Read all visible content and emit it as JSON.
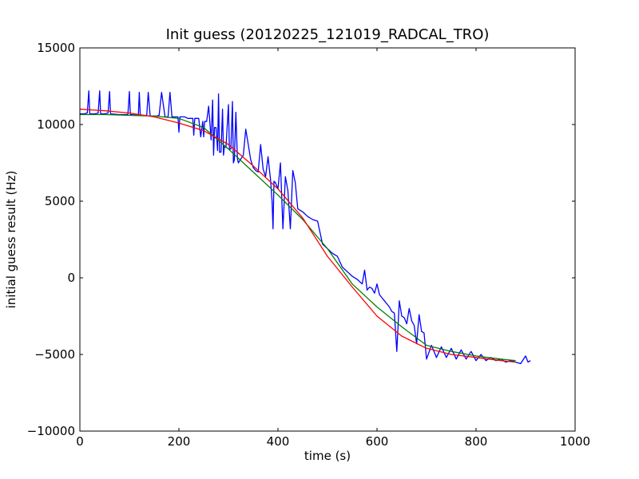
{
  "chart_data": {
    "type": "line",
    "title": "Init guess (20120225_121019_RADCAL_TRO)",
    "xlabel": "time (s)",
    "ylabel": "initial guess result (Hz)",
    "xlim": [
      0,
      1000
    ],
    "ylim": [
      -10000,
      15000
    ],
    "xticks": [
      0,
      200,
      400,
      600,
      800,
      1000
    ],
    "yticks": [
      -10000,
      -5000,
      0,
      5000,
      10000,
      15000
    ],
    "xtick_labels": [
      "0",
      "200",
      "400",
      "600",
      "800",
      "1000"
    ],
    "ytick_labels": [
      "−10000",
      "−5000",
      "0",
      "5000",
      "10000",
      "15000"
    ],
    "grid": false,
    "legend": "none",
    "series": [
      {
        "color": "#0000ff",
        "x": [
          0,
          8,
          15,
          18,
          20,
          30,
          37,
          40,
          42,
          50,
          57,
          60,
          62,
          80,
          97,
          100,
          102,
          118,
          120,
          122,
          126,
          135,
          138,
          142,
          145,
          155,
          160,
          165,
          172,
          178,
          182,
          186,
          190,
          198,
          200,
          202,
          208,
          212,
          218,
          222,
          228,
          230,
          232,
          236,
          240,
          244,
          248,
          250,
          252,
          256,
          260,
          263,
          265,
          268,
          270,
          272,
          275,
          278,
          280,
          282,
          285,
          288,
          290,
          292,
          295,
          300,
          302,
          305,
          308,
          310,
          312,
          315,
          318,
          320,
          330,
          335,
          345,
          350,
          355,
          360,
          365,
          370,
          375,
          380,
          385,
          388,
          390,
          392,
          395,
          400,
          405,
          410,
          415,
          420,
          425,
          430,
          435,
          440,
          450,
          460,
          470,
          480,
          490,
          500,
          510,
          520,
          530,
          540,
          550,
          560,
          570,
          575,
          580,
          585,
          590,
          595,
          600,
          605,
          610,
          615,
          620,
          625,
          630,
          635,
          640,
          645,
          650,
          655,
          660,
          665,
          670,
          675,
          680,
          685,
          690,
          695,
          700,
          710,
          720,
          730,
          740,
          750,
          760,
          770,
          780,
          790,
          800,
          810,
          820,
          830,
          840,
          850,
          860,
          870,
          880,
          890,
          900,
          905,
          910
        ],
        "y": [
          10700,
          10700,
          10750,
          12200,
          10700,
          10700,
          10750,
          12200,
          10700,
          10700,
          10750,
          12150,
          10700,
          10650,
          10650,
          12150,
          10650,
          10600,
          12100,
          10600,
          10600,
          10600,
          12100,
          10550,
          10550,
          10550,
          10600,
          12100,
          10500,
          10500,
          12100,
          10500,
          10500,
          10500,
          9500,
          10500,
          10500,
          10500,
          10400,
          10400,
          10400,
          9300,
          10400,
          10400,
          10400,
          9200,
          10200,
          9200,
          10200,
          10200,
          11200,
          9900,
          9000,
          11600,
          8000,
          9800,
          9800,
          8300,
          12000,
          8200,
          8200,
          11000,
          8000,
          8600,
          8500,
          11300,
          8400,
          8400,
          11500,
          7500,
          7700,
          10800,
          7800,
          7500,
          8000,
          9700,
          7700,
          7200,
          7000,
          6900,
          8700,
          7100,
          6600,
          7900,
          6400,
          5000,
          3200,
          6300,
          6200,
          5800,
          7500,
          3200,
          6600,
          5700,
          3200,
          7000,
          6200,
          4500,
          4300,
          4000,
          3800,
          3700,
          2200,
          1900,
          1600,
          1400,
          700,
          400,
          100,
          -100,
          -400,
          500,
          -800,
          -600,
          -700,
          -1000,
          -400,
          -1100,
          -1300,
          -1500,
          -1700,
          -1900,
          -2200,
          -2300,
          -4800,
          -1500,
          -2500,
          -2600,
          -3000,
          -2000,
          -2800,
          -3100,
          -4300,
          -2400,
          -3500,
          -3600,
          -5300,
          -4400,
          -5200,
          -4500,
          -5200,
          -4600,
          -5300,
          -4700,
          -5300,
          -4800,
          -5400,
          -5000,
          -5400,
          -5200,
          -5400,
          -5300,
          -5500,
          -5400,
          -5500,
          -5600,
          -5100,
          -5500,
          -5400
        ]
      },
      {
        "color": "#008000",
        "x": [
          0,
          50,
          100,
          150,
          200,
          250,
          300,
          350,
          400,
          450,
          500,
          550,
          600,
          650,
          700,
          750,
          800,
          850,
          880
        ],
        "y": [
          10650,
          10650,
          10600,
          10550,
          10400,
          9800,
          8400,
          6900,
          5400,
          3800,
          1900,
          -400,
          -1900,
          -3200,
          -4400,
          -4800,
          -5100,
          -5300,
          -5400
        ]
      },
      {
        "color": "#ff0000",
        "x": [
          0,
          50,
          100,
          150,
          200,
          250,
          300,
          350,
          400,
          450,
          500,
          550,
          600,
          650,
          700,
          750,
          800,
          850,
          880
        ],
        "y": [
          11000,
          10900,
          10750,
          10500,
          10100,
          9600,
          8700,
          7300,
          5800,
          3900,
          1400,
          -600,
          -2500,
          -3800,
          -4600,
          -5000,
          -5200,
          -5400,
          -5500
        ]
      }
    ]
  }
}
